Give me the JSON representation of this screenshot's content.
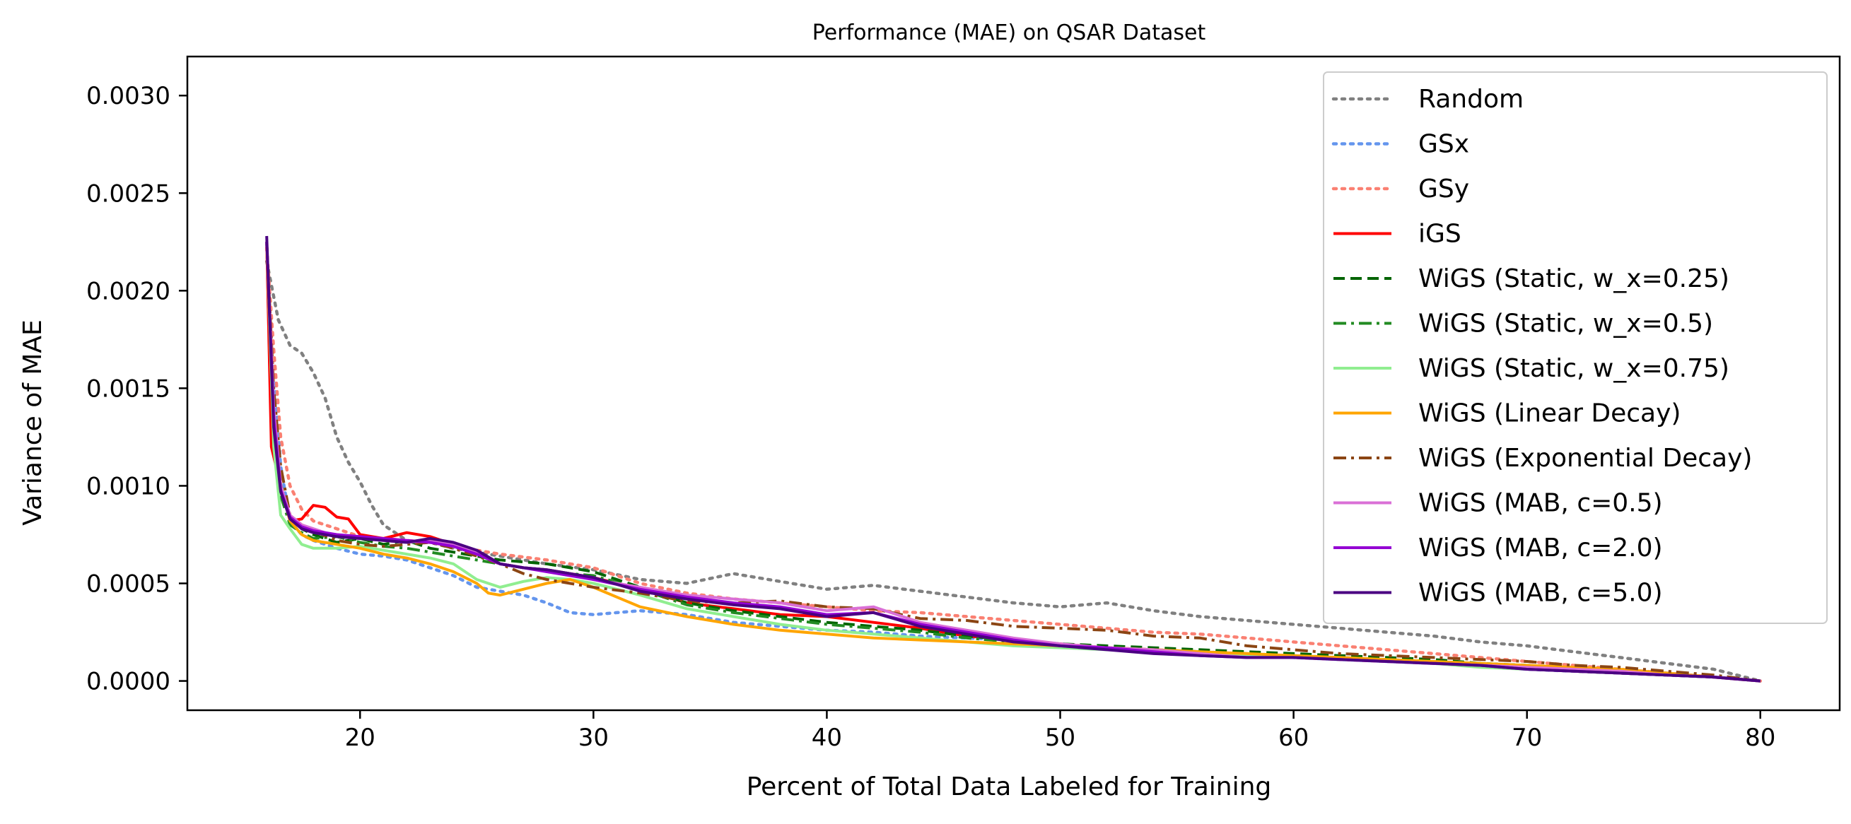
{
  "chart_data": {
    "type": "line",
    "title": "Performance (MAE) on QSAR Dataset",
    "xlabel": "Percent of Total Data Labeled for Training",
    "ylabel": "Variance of MAE",
    "xlim": [
      12.6,
      83.4
    ],
    "ylim": [
      -0.00015,
      0.0032
    ],
    "xticks": [
      20,
      30,
      40,
      50,
      60,
      70,
      80
    ],
    "yticks": [
      0.0,
      0.0005,
      0.001,
      0.0015,
      0.002,
      0.0025,
      0.003
    ],
    "ytick_format": "0.0000",
    "grid": false,
    "legend_position": "top-right",
    "series": [
      {
        "name": "Random",
        "color": "#808080",
        "style": "dotted",
        "x": [
          16,
          16.5,
          17,
          17.5,
          18,
          18.5,
          19,
          19.5,
          20,
          20.5,
          21,
          22,
          23,
          24,
          25,
          26,
          28,
          30,
          32,
          34,
          36,
          38,
          40,
          42,
          44,
          46,
          48,
          50,
          52,
          54,
          56,
          58,
          60,
          62,
          64,
          66,
          68,
          70,
          72,
          74,
          76,
          78,
          80
        ],
        "y": [
          0.00215,
          0.00185,
          0.00172,
          0.00168,
          0.00158,
          0.00145,
          0.00125,
          0.00112,
          0.00102,
          0.0009,
          0.0008,
          0.00072,
          0.00071,
          0.00068,
          0.00066,
          0.00064,
          0.0006,
          0.00057,
          0.00052,
          0.0005,
          0.00055,
          0.00051,
          0.00047,
          0.00049,
          0.00046,
          0.00043,
          0.0004,
          0.00038,
          0.0004,
          0.00036,
          0.00033,
          0.00031,
          0.00029,
          0.00027,
          0.00025,
          0.00023,
          0.0002,
          0.00018,
          0.00015,
          0.00012,
          9e-05,
          6e-05,
          0.0
        ]
      },
      {
        "name": "GSx",
        "color": "#6495ED",
        "style": "dotted",
        "x": [
          16,
          16.3,
          16.6,
          17,
          17.5,
          18,
          19,
          20,
          21,
          22,
          23,
          24,
          25,
          26,
          27,
          28,
          29,
          30,
          31,
          32,
          33,
          34,
          35,
          36,
          38,
          40,
          42,
          44,
          46,
          48,
          50,
          52,
          54,
          56,
          58,
          60,
          62,
          64,
          66,
          68,
          70,
          72,
          74,
          76,
          78,
          80
        ],
        "y": [
          0.00222,
          0.0016,
          0.0011,
          0.00082,
          0.00075,
          0.00072,
          0.00068,
          0.00065,
          0.00064,
          0.00062,
          0.00058,
          0.00054,
          0.00048,
          0.00046,
          0.00044,
          0.0004,
          0.00035,
          0.00034,
          0.00035,
          0.00036,
          0.00035,
          0.00034,
          0.00032,
          0.0003,
          0.00028,
          0.00026,
          0.00025,
          0.00023,
          0.00022,
          0.00021,
          0.00019,
          0.00017,
          0.00016,
          0.00014,
          0.00013,
          0.00012,
          0.00011,
          0.0001,
          9e-05,
          8e-05,
          6e-05,
          5e-05,
          4e-05,
          3e-05,
          2e-05,
          0.0
        ]
      },
      {
        "name": "GSy",
        "color": "#FA8072",
        "style": "dotted",
        "x": [
          16,
          16.3,
          16.6,
          17,
          17.5,
          18,
          19,
          20,
          21,
          22,
          23,
          24,
          25,
          26,
          28,
          30,
          32,
          34,
          36,
          38,
          40,
          42,
          44,
          46,
          48,
          50,
          52,
          54,
          56,
          58,
          60,
          62,
          64,
          66,
          68,
          70,
          72,
          74,
          76,
          78,
          80
        ],
        "y": [
          0.00222,
          0.0017,
          0.00125,
          0.001,
          0.00088,
          0.00082,
          0.00078,
          0.00074,
          0.00073,
          0.00072,
          0.00071,
          0.00069,
          0.00067,
          0.00065,
          0.00062,
          0.00058,
          0.0005,
          0.00045,
          0.00042,
          0.0004,
          0.00038,
          0.00036,
          0.00035,
          0.00033,
          0.00031,
          0.00029,
          0.00027,
          0.00025,
          0.00024,
          0.00022,
          0.0002,
          0.00018,
          0.00016,
          0.00014,
          0.00012,
          0.0001,
          8e-05,
          6e-05,
          4e-05,
          2e-05,
          0.0
        ]
      },
      {
        "name": "iGS",
        "color": "#FF0000",
        "style": "solid",
        "x": [
          16,
          16.2,
          16.5,
          17,
          17.5,
          18,
          18.5,
          19,
          19.5,
          20,
          21,
          22,
          23,
          24,
          25,
          26,
          27,
          28,
          29,
          30,
          32,
          34,
          36,
          38,
          40,
          42,
          44,
          46,
          48,
          50,
          52,
          54,
          56,
          58,
          60,
          62,
          64,
          66,
          68,
          70,
          72,
          74,
          76,
          78,
          80
        ],
        "y": [
          0.00225,
          0.0012,
          0.00105,
          0.00082,
          0.00083,
          0.0009,
          0.00089,
          0.00084,
          0.00083,
          0.00075,
          0.00073,
          0.00076,
          0.00074,
          0.0007,
          0.00066,
          0.0006,
          0.00058,
          0.00057,
          0.00055,
          0.00053,
          0.00047,
          0.0004,
          0.00037,
          0.00034,
          0.00033,
          0.0003,
          0.00027,
          0.00023,
          0.00021,
          0.00019,
          0.00017,
          0.00016,
          0.00015,
          0.00013,
          0.00012,
          0.00011,
          0.0001,
          9e-05,
          8e-05,
          7e-05,
          5e-05,
          4e-05,
          3e-05,
          2e-05,
          0.0
        ]
      },
      {
        "name": "WiGS (Static, w_x=0.25)",
        "color": "#006400",
        "style": "dashed",
        "x": [
          16,
          16.3,
          16.6,
          17,
          17.5,
          18,
          19,
          20,
          21,
          22,
          23,
          24,
          25,
          26,
          27,
          28,
          29,
          30,
          32,
          34,
          36,
          38,
          40,
          42,
          44,
          46,
          48,
          50,
          52,
          54,
          56,
          58,
          60,
          62,
          64,
          66,
          68,
          70,
          72,
          74,
          76,
          78,
          80
        ],
        "y": [
          0.00225,
          0.0014,
          0.001,
          0.00085,
          0.00078,
          0.00075,
          0.00071,
          0.00073,
          0.0007,
          0.00072,
          0.00068,
          0.00066,
          0.00064,
          0.00062,
          0.00061,
          0.0006,
          0.00058,
          0.00056,
          0.00048,
          0.0004,
          0.00036,
          0.00033,
          0.0003,
          0.00028,
          0.00026,
          0.00023,
          0.00021,
          0.00019,
          0.00018,
          0.00017,
          0.00016,
          0.00015,
          0.00014,
          0.00013,
          0.00012,
          0.00011,
          9e-05,
          8e-05,
          6e-05,
          5e-05,
          3e-05,
          2e-05,
          0.0
        ]
      },
      {
        "name": "WiGS (Static, w_x=0.5)",
        "color": "#228B22",
        "style": "dashdot",
        "x": [
          16,
          16.3,
          16.6,
          17,
          17.5,
          18,
          19,
          20,
          21,
          22,
          23,
          24,
          25,
          26,
          27,
          28,
          29,
          30,
          32,
          34,
          36,
          38,
          40,
          42,
          44,
          46,
          48,
          50,
          52,
          54,
          56,
          58,
          60,
          62,
          64,
          66,
          68,
          70,
          72,
          74,
          76,
          78,
          80
        ],
        "y": [
          0.00225,
          0.0013,
          0.00095,
          0.0008,
          0.00076,
          0.00073,
          0.00074,
          0.00071,
          0.00069,
          0.00068,
          0.00066,
          0.00064,
          0.00062,
          0.0006,
          0.00058,
          0.00057,
          0.00055,
          0.00054,
          0.00047,
          0.00039,
          0.00035,
          0.00032,
          0.00029,
          0.00027,
          0.00025,
          0.00022,
          0.0002,
          0.00018,
          0.00017,
          0.00016,
          0.00015,
          0.00014,
          0.00013,
          0.00012,
          0.00011,
          0.0001,
          8e-05,
          7e-05,
          5e-05,
          4e-05,
          3e-05,
          2e-05,
          0.0
        ]
      },
      {
        "name": "WiGS (Static, w_x=0.75)",
        "color": "#90EE90",
        "style": "solid",
        "x": [
          16,
          16.3,
          16.6,
          17,
          17.5,
          18,
          19,
          20,
          21,
          22,
          23,
          24,
          25,
          26,
          27,
          28,
          29,
          30,
          32,
          34,
          36,
          38,
          40,
          42,
          44,
          46,
          48,
          50,
          52,
          54,
          56,
          58,
          60,
          62,
          64,
          66,
          68,
          70,
          72,
          74,
          76,
          78,
          80
        ],
        "y": [
          0.00225,
          0.0012,
          0.00085,
          0.00078,
          0.0007,
          0.00068,
          0.00068,
          0.00069,
          0.00067,
          0.00065,
          0.00063,
          0.0006,
          0.00052,
          0.00048,
          0.00051,
          0.00053,
          0.00052,
          0.0005,
          0.00044,
          0.00037,
          0.00033,
          0.00029,
          0.00026,
          0.00024,
          0.00022,
          0.0002,
          0.00018,
          0.00017,
          0.00016,
          0.00015,
          0.00014,
          0.00013,
          0.00012,
          0.00011,
          0.0001,
          9e-05,
          7e-05,
          6e-05,
          5e-05,
          4e-05,
          3e-05,
          2e-05,
          0.0
        ]
      },
      {
        "name": "WiGS (Linear Decay)",
        "color": "#FFA500",
        "style": "solid",
        "x": [
          16,
          16.3,
          16.6,
          17,
          17.5,
          18,
          19,
          20,
          21,
          22,
          23,
          24,
          25,
          25.5,
          26,
          27,
          28,
          29,
          30,
          32,
          34,
          36,
          38,
          40,
          42,
          44,
          46,
          48,
          50,
          52,
          54,
          56,
          58,
          60,
          62,
          64,
          66,
          68,
          70,
          72,
          74,
          76,
          78,
          80
        ],
        "y": [
          0.00222,
          0.0014,
          0.001,
          0.00082,
          0.00075,
          0.00072,
          0.0007,
          0.00068,
          0.00065,
          0.00063,
          0.0006,
          0.00056,
          0.0005,
          0.00045,
          0.00044,
          0.00047,
          0.0005,
          0.00052,
          0.00048,
          0.00038,
          0.00033,
          0.00029,
          0.00026,
          0.00024,
          0.00022,
          0.00021,
          0.0002,
          0.00019,
          0.00018,
          0.00017,
          0.00016,
          0.00015,
          0.00014,
          0.00013,
          0.00012,
          0.00011,
          0.0001,
          9e-05,
          8e-05,
          7e-05,
          6e-05,
          4e-05,
          2e-05,
          0.0
        ]
      },
      {
        "name": "WiGS (Exponential Decay)",
        "color": "#8B4513",
        "style": "dashdot",
        "x": [
          16,
          16.3,
          16.6,
          17,
          17.5,
          18,
          19,
          20,
          21,
          22,
          23,
          24,
          25,
          26,
          27,
          28,
          29,
          30,
          32,
          34,
          36,
          38,
          40,
          42,
          44,
          46,
          48,
          50,
          52,
          54,
          56,
          58,
          60,
          62,
          64,
          66,
          68,
          70,
          72,
          74,
          76,
          78,
          80
        ],
        "y": [
          0.00225,
          0.0015,
          0.0011,
          0.00085,
          0.0008,
          0.00077,
          0.00072,
          0.0007,
          0.00069,
          0.0007,
          0.00071,
          0.00068,
          0.00064,
          0.0006,
          0.00055,
          0.00052,
          0.0005,
          0.00048,
          0.00045,
          0.00041,
          0.0004,
          0.00041,
          0.00038,
          0.00037,
          0.00032,
          0.00031,
          0.00028,
          0.00027,
          0.00026,
          0.00023,
          0.00022,
          0.00018,
          0.00016,
          0.00014,
          0.00013,
          0.00012,
          0.00011,
          0.0001,
          8e-05,
          7e-05,
          5e-05,
          3e-05,
          0.0
        ]
      },
      {
        "name": "WiGS (MAB, c=0.5)",
        "color": "#DA70D6",
        "style": "solid",
        "x": [
          16,
          16.3,
          16.6,
          17,
          17.5,
          18,
          19,
          20,
          21,
          22,
          23,
          24,
          25,
          26,
          27,
          28,
          29,
          30,
          32,
          34,
          36,
          38,
          40,
          42,
          44,
          46,
          48,
          50,
          52,
          54,
          56,
          58,
          60,
          62,
          64,
          66,
          68,
          70,
          72,
          74,
          76,
          78,
          80
        ],
        "y": [
          0.00225,
          0.0014,
          0.001,
          0.00085,
          0.0008,
          0.00078,
          0.00074,
          0.00073,
          0.00072,
          0.00071,
          0.00072,
          0.0007,
          0.00066,
          0.0006,
          0.00058,
          0.00057,
          0.00055,
          0.00052,
          0.00048,
          0.00044,
          0.00042,
          0.0004,
          0.00036,
          0.00038,
          0.0003,
          0.00026,
          0.00022,
          0.00019,
          0.00017,
          0.00016,
          0.00014,
          0.00012,
          0.00012,
          0.00011,
          0.0001,
          9e-05,
          8e-05,
          7e-05,
          6e-05,
          5e-05,
          3e-05,
          2e-05,
          0.0
        ]
      },
      {
        "name": "WiGS (MAB, c=2.0)",
        "color": "#9400D3",
        "style": "solid",
        "x": [
          16,
          16.3,
          16.6,
          17,
          17.5,
          18,
          19,
          20,
          21,
          22,
          23,
          24,
          25,
          26,
          27,
          28,
          29,
          30,
          32,
          34,
          36,
          38,
          40,
          42,
          44,
          46,
          48,
          50,
          52,
          54,
          56,
          58,
          60,
          62,
          64,
          66,
          68,
          70,
          72,
          74,
          76,
          78,
          80
        ],
        "y": [
          0.00225,
          0.00135,
          0.00098,
          0.00084,
          0.00079,
          0.00077,
          0.00075,
          0.00074,
          0.00073,
          0.00072,
          0.00071,
          0.00069,
          0.00065,
          0.0006,
          0.00058,
          0.00056,
          0.00054,
          0.00052,
          0.00047,
          0.00043,
          0.0004,
          0.00038,
          0.00034,
          0.00035,
          0.00029,
          0.00025,
          0.00021,
          0.00018,
          0.00017,
          0.00015,
          0.00013,
          0.00012,
          0.00012,
          0.00011,
          0.0001,
          9e-05,
          8e-05,
          6e-05,
          5e-05,
          4e-05,
          3e-05,
          2e-05,
          0.0
        ]
      },
      {
        "name": "WiGS (MAB, c=5.0)",
        "color": "#4B0082",
        "style": "solid",
        "x": [
          16,
          16.3,
          16.6,
          17,
          17.5,
          18,
          19,
          20,
          21,
          22,
          23,
          24,
          25,
          26,
          27,
          28,
          29,
          30,
          32,
          34,
          36,
          38,
          40,
          42,
          44,
          46,
          48,
          50,
          52,
          54,
          56,
          58,
          60,
          62,
          64,
          66,
          68,
          70,
          72,
          74,
          76,
          78,
          80
        ],
        "y": [
          0.00228,
          0.0013,
          0.00097,
          0.00083,
          0.00078,
          0.00076,
          0.00074,
          0.00073,
          0.00072,
          0.00071,
          0.00073,
          0.00071,
          0.00067,
          0.0006,
          0.00058,
          0.00057,
          0.00055,
          0.00053,
          0.00046,
          0.00042,
          0.00039,
          0.00037,
          0.00033,
          0.00035,
          0.00028,
          0.00024,
          0.0002,
          0.00018,
          0.00016,
          0.00014,
          0.00013,
          0.00012,
          0.00012,
          0.00011,
          0.0001,
          9e-05,
          8e-05,
          6e-05,
          5e-05,
          4e-05,
          3e-05,
          2e-05,
          0.0
        ]
      }
    ]
  }
}
